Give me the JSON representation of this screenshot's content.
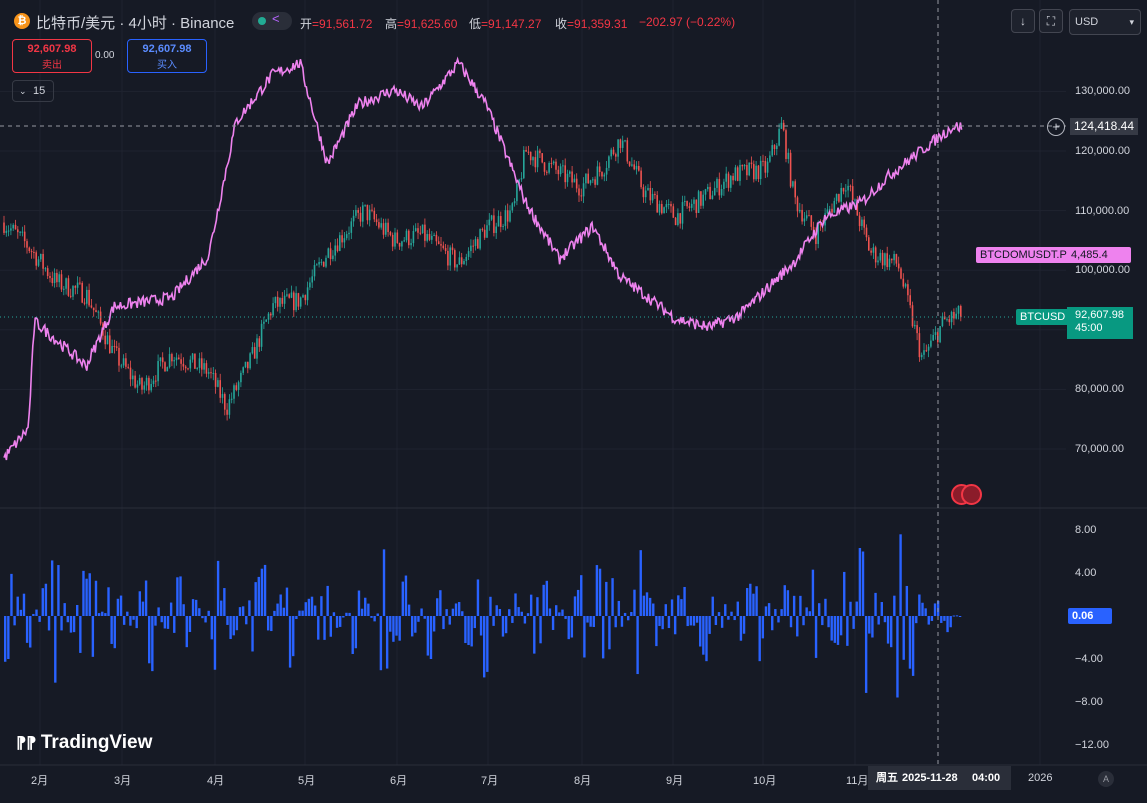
{
  "header": {
    "logo_glyph": "₿",
    "symbol_title": "比特币/美元 · 4小时 · Binance",
    "ohlc": {
      "open_label": "开",
      "open_value": "=91,561.72",
      "high_label": "高",
      "high_value": "=91,625.60",
      "low_label": "低",
      "low_value": "=91,147.27",
      "close_label": "收",
      "close_value": "=91,359.31",
      "change": "−202.97 (−0.22%)"
    },
    "download_icon_glyph": "↓",
    "fullscreen_icon_glyph": "⛶",
    "currency": "USD",
    "currency_chevron": "▾"
  },
  "trade": {
    "sell_price": "92,607.98",
    "sell_label": "卖出",
    "spread": "0.00",
    "buy_price": "92,607.98",
    "buy_label": "买入"
  },
  "indicator_toggle": {
    "chevron": "⌄",
    "count": "15"
  },
  "price_axis": {
    "ticks": [
      "130,000.00",
      "120,000.00",
      "110,000.00",
      "100,000.00",
      "80,000.00",
      "70,000.00"
    ],
    "crosshair_price": "124,418.44",
    "plus_glyph": "+",
    "btcdom_tag": "BTCDOMUSDT.P",
    "btcdom_value": "4,485.4",
    "btcusd_tag": "BTCUSD",
    "btcusd_value": "92,607.98",
    "btcusd_countdown": "45:00"
  },
  "osc_axis": {
    "ticks": [
      "8.00",
      "4.00",
      "−4.00",
      "−8.00",
      "−12.00"
    ],
    "current_value": "0.06"
  },
  "time_axis": {
    "ticks": [
      "2月",
      "3月",
      "4月",
      "5月",
      "6月",
      "7月",
      "8月",
      "9月",
      "10月",
      "11月",
      "2026"
    ],
    "crosshair_day": "周五",
    "crosshair_date": "2025-11-28",
    "crosshair_time": "04:00",
    "auto_label": "A"
  },
  "branding": {
    "logo_text": "TradingView"
  },
  "colors": {
    "background": "#161a25",
    "candle_up": "#26a69a",
    "candle_down": "#ef5350",
    "overlay_line": "#ee82ee",
    "histogram": "#2962ff",
    "sell": "#f23645",
    "buy": "#2962ff"
  },
  "chart_data": [
    {
      "type": "line",
      "series": [
        {
          "name": "BTCUSD",
          "x": [
            "1月24日",
            "2月1日",
            "2月10日",
            "2月20日",
            "3月1日",
            "3月10日",
            "3月20日",
            "4月1日",
            "4月7日",
            "4月15日",
            "4月22日",
            "5月1日",
            "5月10日",
            "5月22日",
            "6月1日",
            "6月10日",
            "6月22日",
            "7月1日",
            "7月10日",
            "7月14日",
            "7月20日",
            "8月1日",
            "8月8日",
            "8月14日",
            "8月22日",
            "9月1日",
            "9月10日",
            "9月20日",
            "10月1日",
            "10月6日",
            "10月10日",
            "10月17日",
            "10月27日",
            "11月4日",
            "11月13日",
            "11月21日",
            "11月28日",
            "12月4日"
          ],
          "y": [
            108000,
            104000,
            98000,
            96000,
            86000,
            80000,
            86000,
            83000,
            77000,
            85000,
            94000,
            95000,
            103000,
            110000,
            105000,
            106000,
            101000,
            107000,
            110000,
            120000,
            118000,
            114000,
            117000,
            122000,
            113000,
            109000,
            112000,
            116000,
            117000,
            124418.44,
            112000,
            106000,
            115000,
            103000,
            101000,
            85000,
            91359.31,
            92607.98
          ]
        },
        {
          "name": "BTCDOMUSDT.P",
          "x": [
            "1月24日",
            "2月1日",
            "2月3日",
            "2月20日",
            "3月1日",
            "3月20日",
            "4月1日",
            "4月10日",
            "4月22日",
            "5月1日",
            "5月10日",
            "5月20日",
            "6月1日",
            "6月10日",
            "6月22日",
            "7月1日",
            "7月14日",
            "7月25日",
            "8月5日",
            "8月14日",
            "8月22日",
            "9月1日",
            "9月12日",
            "9月22日",
            "10月1日",
            "10月10日",
            "10月20日",
            "11月1日",
            "11月10日",
            "11月20日",
            "12月1日"
          ],
          "y": [
            3370,
            3470,
            3830,
            3680,
            3880,
            3910,
            4050,
            4500,
            4660,
            4700,
            4360,
            4560,
            4610,
            4550,
            4700,
            4560,
            4230,
            4040,
            4150,
            3980,
            3920,
            3840,
            3810,
            3850,
            3940,
            4030,
            4180,
            4230,
            4320,
            4400,
            4485.4
          ]
        }
      ],
      "ylim": [
        67000,
        136000
      ]
    },
    {
      "type": "bar",
      "series": [
        {
          "name": "",
          "values": [
            -4.0,
            1.8,
            -2.5,
            0.6,
            3.0,
            -6.2,
            1.2,
            -1.5,
            4.2,
            -3.8,
            0.4,
            -2.6,
            1.9,
            -0.9,
            2.3,
            -4.4,
            0.8,
            -1.2,
            3.6,
            -2.9,
            1.5,
            -0.6,
            -5.0,
            2.6,
            -1.8,
            0.9,
            -3.3,
            4.4,
            -1.4,
            2.0,
            -4.8,
            0.5,
            1.6,
            -2.2,
            2.8,
            -1.1,
            0.3,
            -3.0,
            1.7,
            -0.5,
            6.2,
            -2.4,
            3.2,
            -1.9,
            0.7,
            -4.0,
            2.4,
            -0.8,
            1.3,
            -2.7,
            3.4,
            -5.2,
            1.0,
            -1.6,
            2.1,
            -0.7,
            -3.5,
            2.9,
            -1.3,
            0.6,
            -2.0,
            3.8,
            -1.0,
            4.4,
            -3.1,
            1.4,
            -0.4,
            -5.4,
            2.2,
            -2.8,
            1.1,
            -1.7,
            2.7,
            -0.9,
            -3.6,
            1.8,
            -1.1,
            0.4,
            -2.3,
            3.0,
            -4.2,
            1.2,
            -0.6,
            2.4,
            -1.9,
            0.8,
            -3.9,
            1.6,
            -2.5,
            4.1,
            -1.2,
            6.0,
            -2.0,
            1.3,
            -2.9,
            7.6,
            -4.9,
            2.0,
            -0.8,
            1.4,
            -1.5,
            0.06
          ]
        }
      ],
      "ylim": [
        -12.5,
        9.5
      ]
    }
  ]
}
